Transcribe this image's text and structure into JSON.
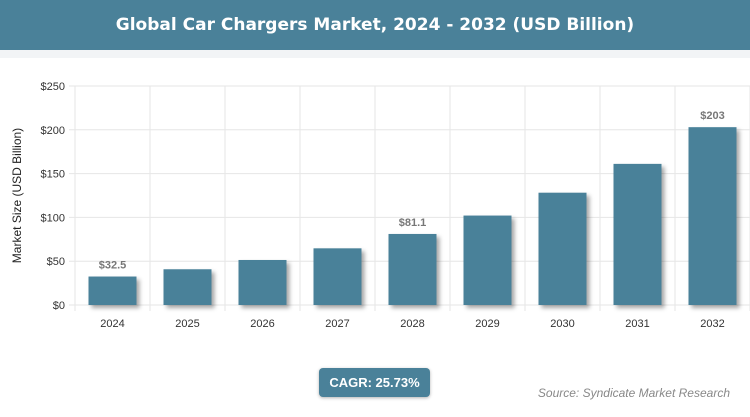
{
  "title": "Global Car Chargers Market, 2024 - 2032 (USD Billion)",
  "cagr_label": "CAGR: 25.73%",
  "source": "Source: Syndicate Market Research",
  "colors": {
    "bar": "#4a8199",
    "header": "#4a8199"
  },
  "chart_data": {
    "type": "bar",
    "title": "Global Car Chargers Market, 2024 - 2032 (USD Billion)",
    "xlabel": "",
    "ylabel": "Market Size (USD Billion)",
    "categories": [
      "2024",
      "2025",
      "2026",
      "2027",
      "2028",
      "2029",
      "2030",
      "2031",
      "2032"
    ],
    "values": [
      32.5,
      40.8,
      51.4,
      64.7,
      81.1,
      102.1,
      128.2,
      161.1,
      203
    ],
    "data_labels": {
      "2024": "$32.5",
      "2028": "$81.1",
      "2032": "$203"
    },
    "ylim": [
      0,
      250
    ],
    "yticks": [
      0,
      50,
      100,
      150,
      200,
      250
    ],
    "ytick_labels": [
      "$0",
      "$50",
      "$100",
      "$150",
      "$200",
      "$250"
    ],
    "grid": true,
    "legend": "none"
  }
}
